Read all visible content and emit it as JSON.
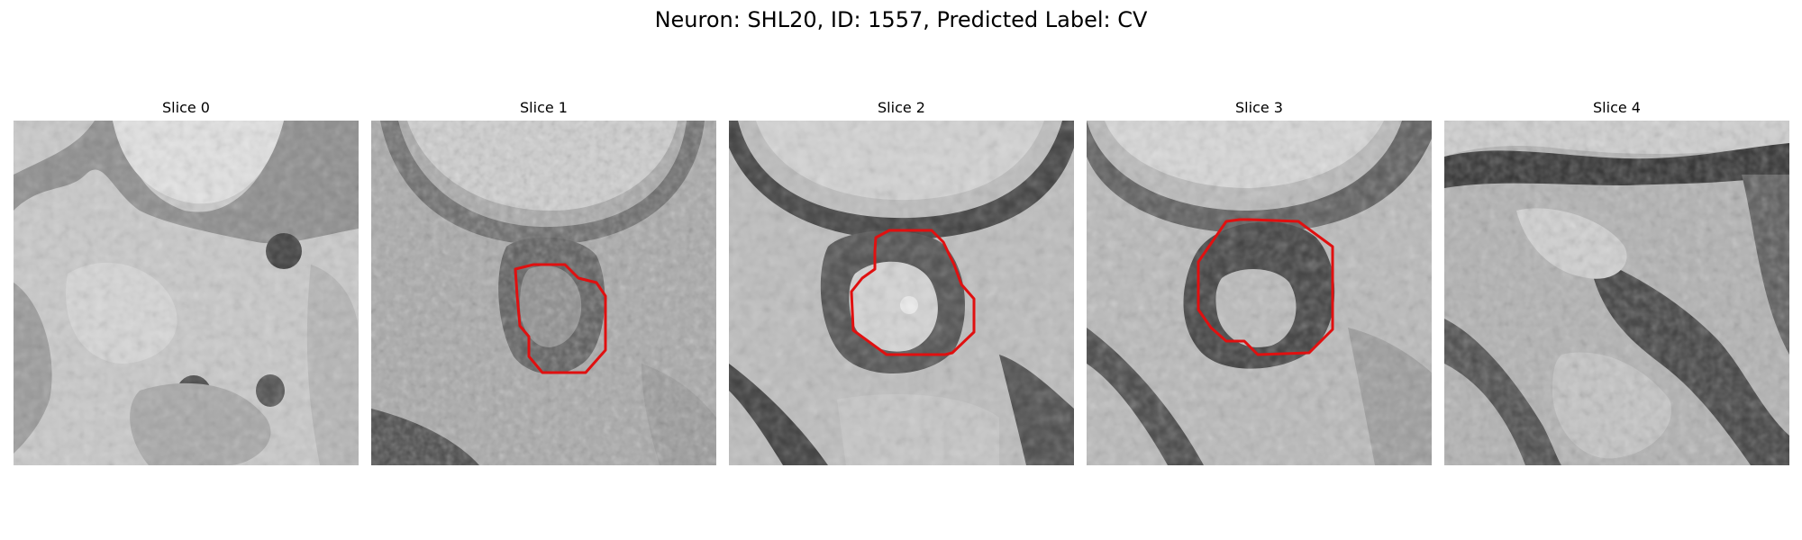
{
  "figure": {
    "title": "Neuron: SHL20, ID: 1557, Predicted Label: CV"
  },
  "contour_color": "#e01010",
  "slices": [
    {
      "title": "Slice 0",
      "has_contour": false
    },
    {
      "title": "Slice 1",
      "has_contour": true
    },
    {
      "title": "Slice 2",
      "has_contour": true
    },
    {
      "title": "Slice 3",
      "has_contour": true
    },
    {
      "title": "Slice 4",
      "has_contour": false
    }
  ]
}
